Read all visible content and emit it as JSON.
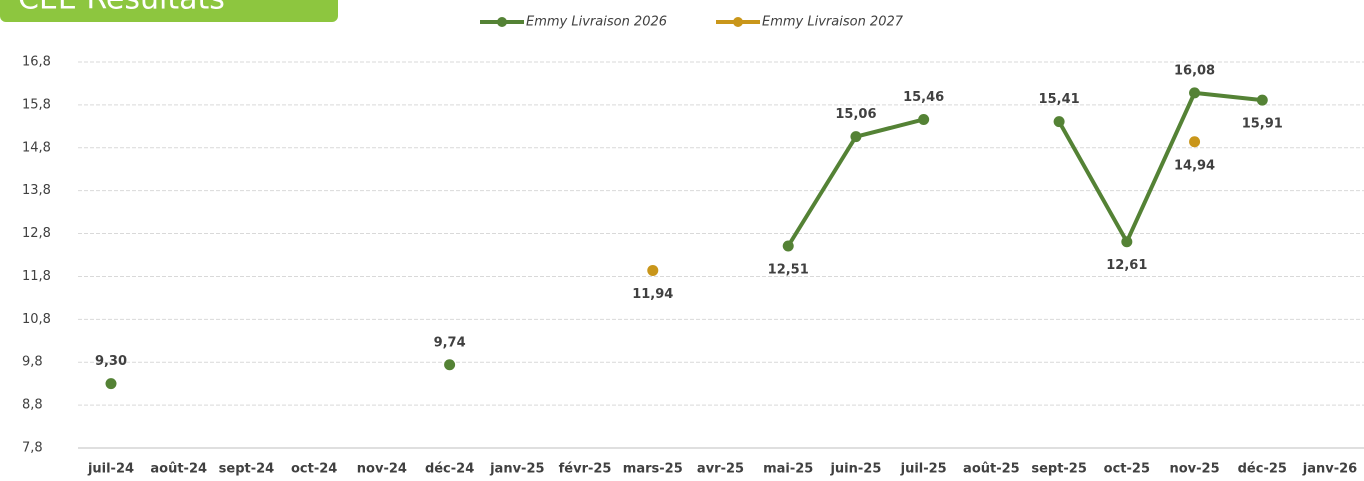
{
  "header": {
    "badge": "CEE Résultats"
  },
  "chart_data": {
    "type": "line",
    "categories": [
      "juil-24",
      "août-24",
      "sept-24",
      "oct-24",
      "nov-24",
      "déc-24",
      "janv-25",
      "févr-25",
      "mars-25",
      "avr-25",
      "mai-25",
      "juin-25",
      "juil-25",
      "août-25",
      "sept-25",
      "oct-25",
      "nov-25",
      "déc-25",
      "janv-26"
    ],
    "series": [
      {
        "name": "Emmy Livraison 2026",
        "color": "#548235",
        "values": [
          9.3,
          null,
          null,
          null,
          null,
          9.74,
          null,
          null,
          null,
          null,
          12.51,
          15.06,
          15.46,
          null,
          15.41,
          12.61,
          16.08,
          15.91,
          null
        ],
        "value_labels": [
          "9,30",
          null,
          null,
          null,
          null,
          "9,74",
          null,
          null,
          null,
          null,
          "12,51",
          "15,06",
          "15,46",
          null,
          "15,41",
          "12,61",
          "16,08",
          "15,91",
          null
        ]
      },
      {
        "name": "Emmy Livraison 2027",
        "color": "#c9961a",
        "values": [
          null,
          null,
          null,
          null,
          null,
          null,
          null,
          null,
          11.94,
          null,
          null,
          null,
          null,
          null,
          null,
          null,
          14.94,
          null,
          null
        ],
        "value_labels": [
          null,
          null,
          null,
          null,
          null,
          null,
          null,
          null,
          "11,94",
          null,
          null,
          null,
          null,
          null,
          null,
          null,
          "14,94",
          null,
          null
        ]
      }
    ],
    "ylim": [
      7.8,
      16.8
    ],
    "yticks": [
      {
        "value": 7.8,
        "label": "7,8"
      },
      {
        "value": 8.8,
        "label": "8,8"
      },
      {
        "value": 9.8,
        "label": "9,8"
      },
      {
        "value": 10.8,
        "label": "10,8"
      },
      {
        "value": 11.8,
        "label": "11,8"
      },
      {
        "value": 12.8,
        "label": "12,8"
      },
      {
        "value": 13.8,
        "label": "13,8"
      },
      {
        "value": 14.8,
        "label": "14,8"
      },
      {
        "value": 15.8,
        "label": "15,8"
      },
      {
        "value": 16.8,
        "label": "16,8"
      }
    ],
    "grid": true,
    "legend": "top"
  }
}
